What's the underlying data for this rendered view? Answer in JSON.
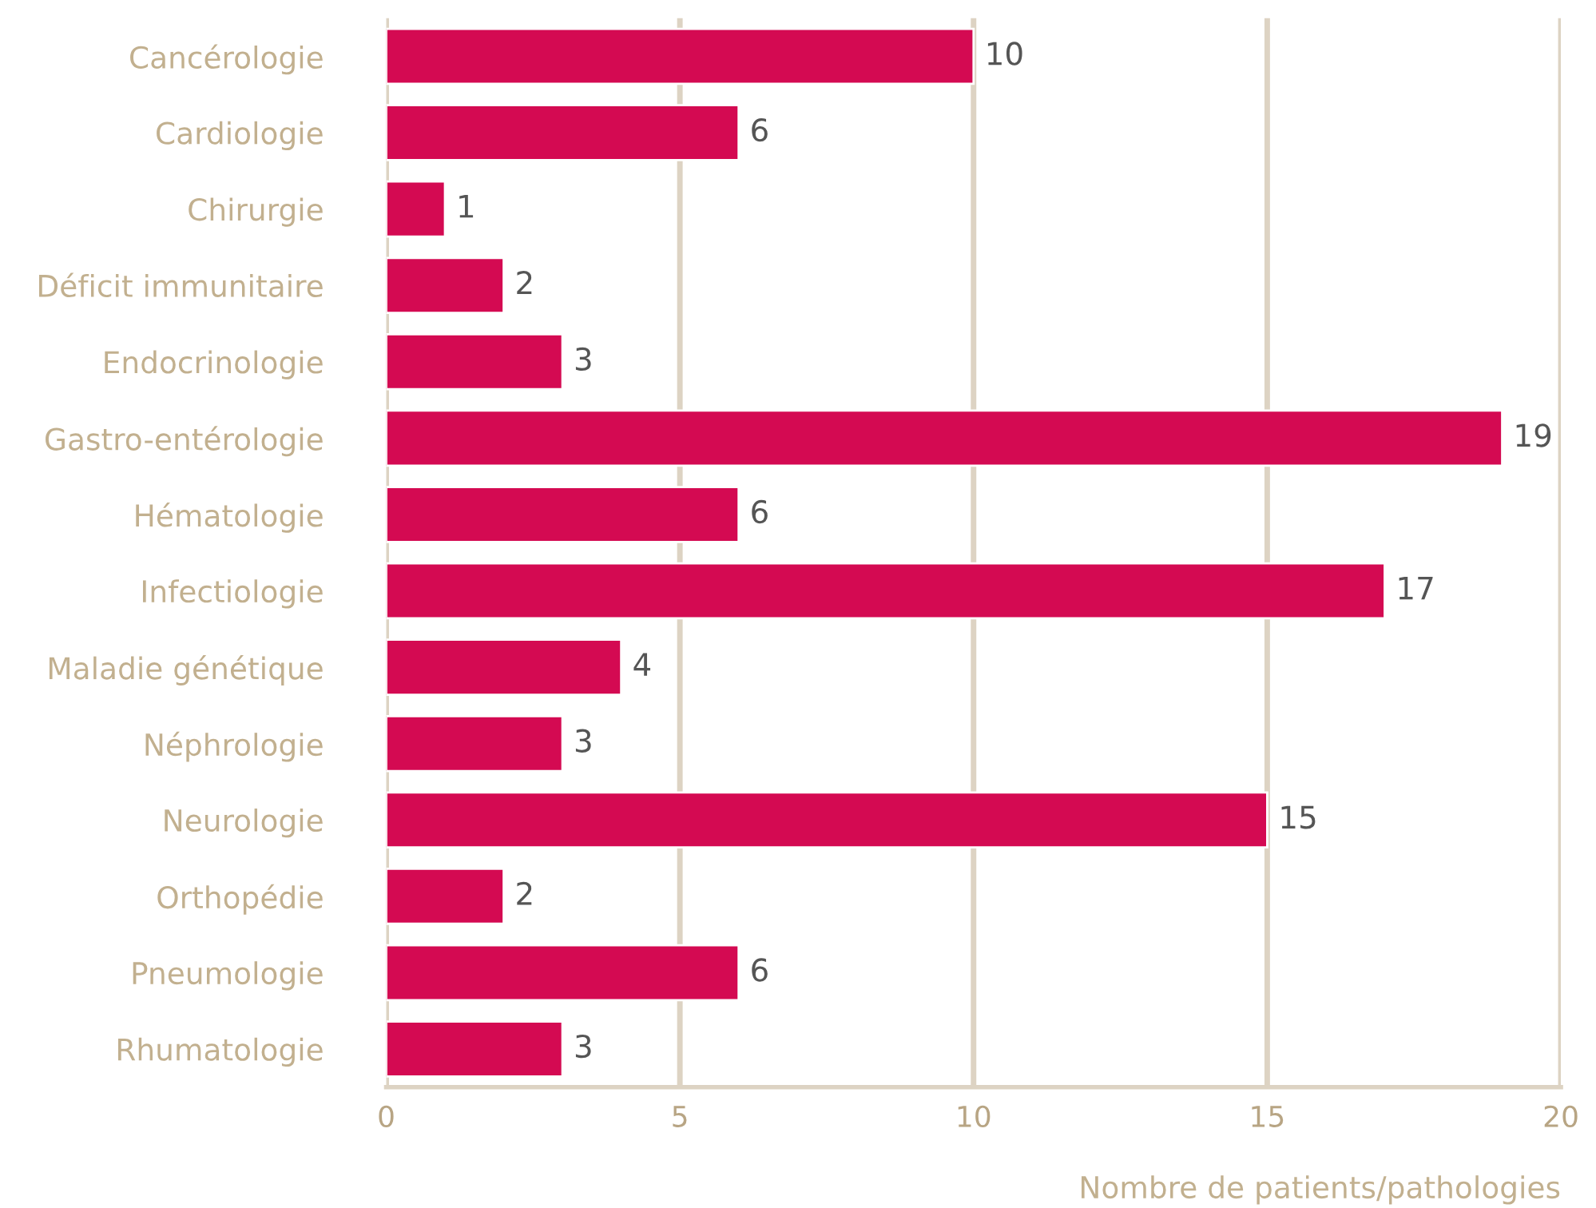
{
  "chart_data": {
    "type": "bar",
    "orientation": "horizontal",
    "xlabel": "Nombre de patients/pathologies",
    "categories": [
      "Cancérologie",
      "Cardiologie",
      "Chirurgie",
      "Déficit immunitaire",
      "Endocrinologie",
      "Gastro-entérologie",
      "Hématologie",
      "Infectiologie",
      "Maladie génétique",
      "Néphrologie",
      "Neurologie",
      "Orthopédie",
      "Pneumologie",
      "Rhumatologie"
    ],
    "values": [
      10,
      6,
      1,
      2,
      3,
      19,
      6,
      17,
      4,
      3,
      15,
      2,
      6,
      3
    ],
    "color": "#d40a52",
    "xlim": [
      0,
      20
    ],
    "xticks": [
      0,
      5,
      10,
      15,
      20
    ],
    "data_labels": true,
    "grid": "x",
    "legend": false
  }
}
